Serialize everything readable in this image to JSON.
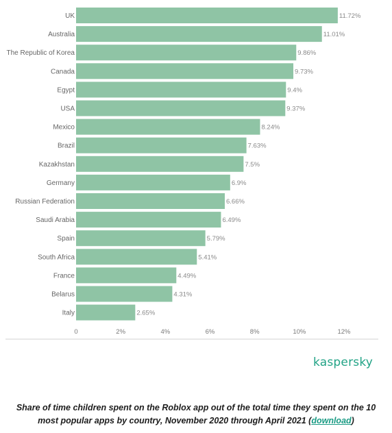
{
  "chart_data": {
    "type": "bar",
    "orientation": "horizontal",
    "categories": [
      "UK",
      "Australia",
      "The Republic of Korea",
      "Canada",
      "Egypt",
      "USA",
      "Mexico",
      "Brazil",
      "Kazakhstan",
      "Germany",
      "Russian Federation",
      "Saudi Arabia",
      "Spain",
      "South Africa",
      "France",
      "Belarus",
      "Italy"
    ],
    "values": [
      11.72,
      11.01,
      9.86,
      9.73,
      9.4,
      9.37,
      8.24,
      7.63,
      7.5,
      6.9,
      6.66,
      6.49,
      5.79,
      5.41,
      4.49,
      4.31,
      2.65
    ],
    "value_labels": [
      "11.72%",
      "11.01%",
      "9.86%",
      "9.73%",
      "9.4%",
      "9.37%",
      "8.24%",
      "7.63%",
      "7.5%",
      "6.9%",
      "6.66%",
      "6.49%",
      "5.79%",
      "5.41%",
      "4.49%",
      "4.31%",
      "2.65%"
    ],
    "x_ticks": [
      0,
      2,
      4,
      6,
      8,
      10,
      12
    ],
    "x_tick_labels": [
      "0",
      "2%",
      "4%",
      "6%",
      "8%",
      "10%",
      "12%"
    ],
    "xlim": [
      0,
      12
    ],
    "bar_color": "#8fc4a5",
    "grid": false
  },
  "brand": {
    "logo_text": "kaspersky",
    "color": "#22a386"
  },
  "caption": {
    "text": "Share of time children spent on the Roblox app out of the total time they spent on the 10 most popular apps by country, November 2020 through April 2021 (",
    "link_text": "download",
    "suffix": ")"
  }
}
